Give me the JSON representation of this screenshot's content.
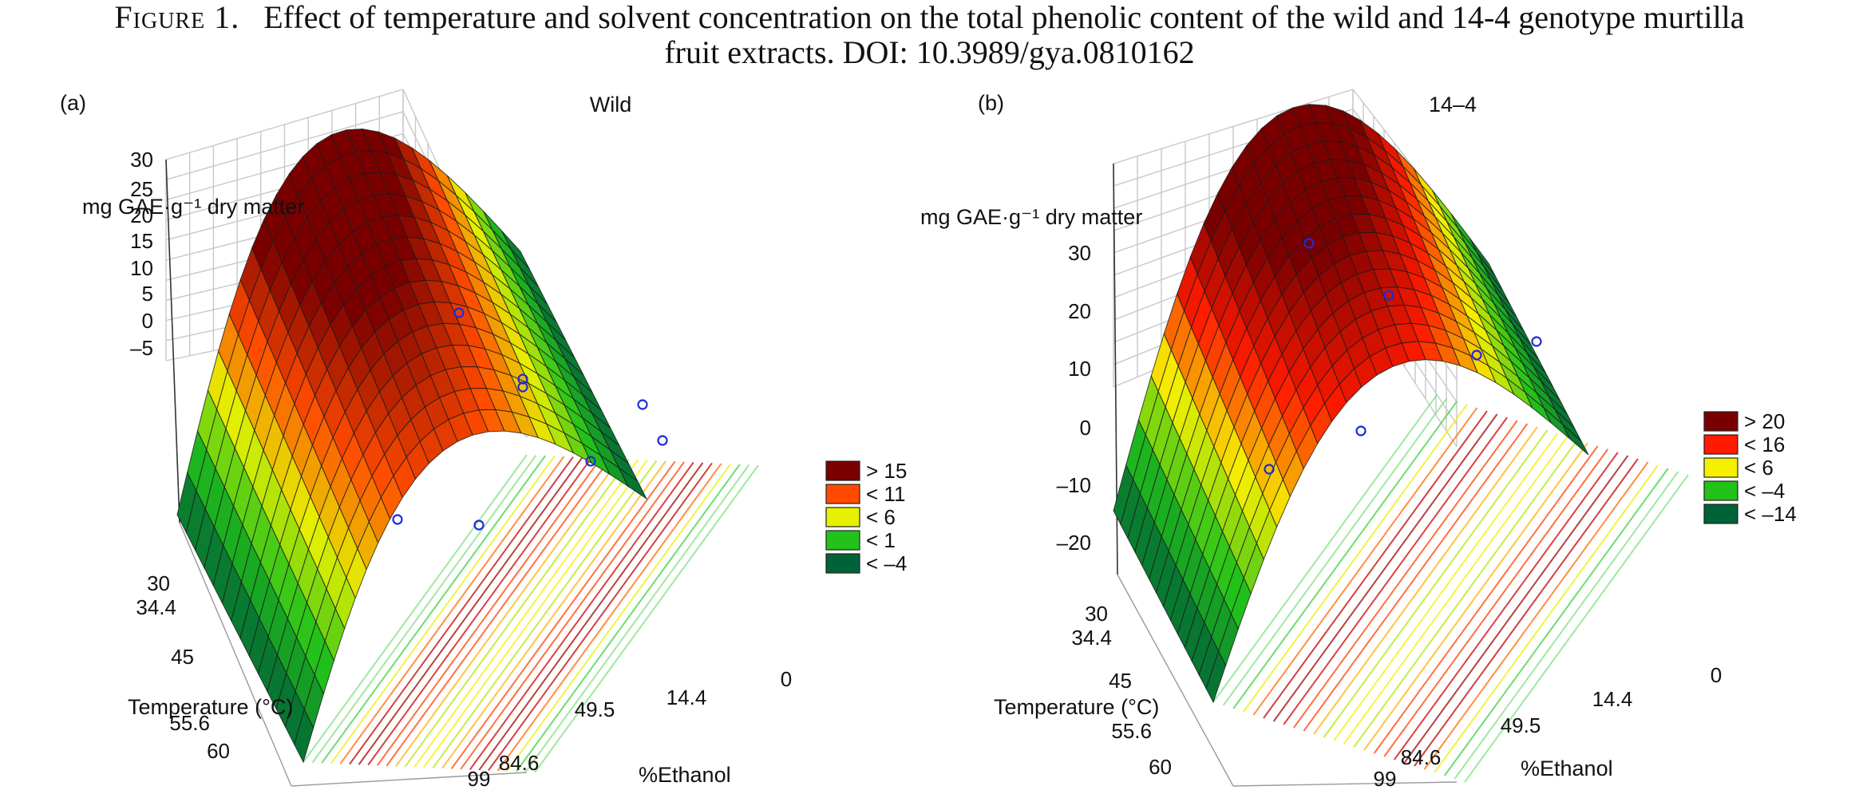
{
  "caption": {
    "figure_label": "Figure 1.",
    "line1": "Effect of temperature and solvent concentration on the total phenolic content of the wild and 14-4 genotype murtilla",
    "line2": "fruit extracts. DOI: 10.3989/gya.0810162"
  },
  "chart_data": [
    {
      "type": "surface",
      "panel_label": "(a)",
      "title": "Wild",
      "zlabel": "mg GAE·g⁻¹ dry matter",
      "ylabel": "Temperature (°C)",
      "xlabel": "%Ethanol",
      "z_ticks": [
        "30",
        "25",
        "20",
        "15",
        "10",
        "5",
        "0",
        "–5"
      ],
      "temperature_ticks": [
        "30",
        "34.4",
        "45",
        "55.6",
        "60"
      ],
      "ethanol_ticks": [
        "99",
        "84.6",
        "49.5",
        "14.4",
        "0"
      ],
      "legend": [
        {
          "label": "> 15",
          "color": "#7a0000"
        },
        {
          "label": "< 11",
          "color": "#ff4a00"
        },
        {
          "label": "< 6",
          "color": "#e6f000"
        },
        {
          "label": "< 1",
          "color": "#22c21a"
        },
        {
          "label": "< –4",
          "color": "#006238"
        }
      ],
      "zlim": [
        -5,
        30
      ],
      "peak_ethanol": 49.5,
      "peak_value": 26
    },
    {
      "type": "surface",
      "panel_label": "(b)",
      "title": "14–4",
      "zlabel": "mg GAE·g⁻¹ dry matter",
      "ylabel": "Temperature (°C)",
      "xlabel": "%Ethanol",
      "z_ticks": [
        "30",
        "20",
        "10",
        "0",
        "–10",
        "–20"
      ],
      "temperature_ticks": [
        "30",
        "34.4",
        "45",
        "55.6",
        "60"
      ],
      "ethanol_ticks": [
        "99",
        "84.6",
        "49.5",
        "14.4",
        "0"
      ],
      "legend": [
        {
          "label": "> 20",
          "color": "#7a0000"
        },
        {
          "label": "< 16",
          "color": "#ff1a00"
        },
        {
          "label": "< 6",
          "color": "#f5f000"
        },
        {
          "label": "< –4",
          "color": "#22c21a"
        },
        {
          "label": "< –14",
          "color": "#006238"
        }
      ],
      "zlim": [
        -20,
        30
      ],
      "peak_ethanol": 49.5,
      "peak_value": 32
    }
  ]
}
